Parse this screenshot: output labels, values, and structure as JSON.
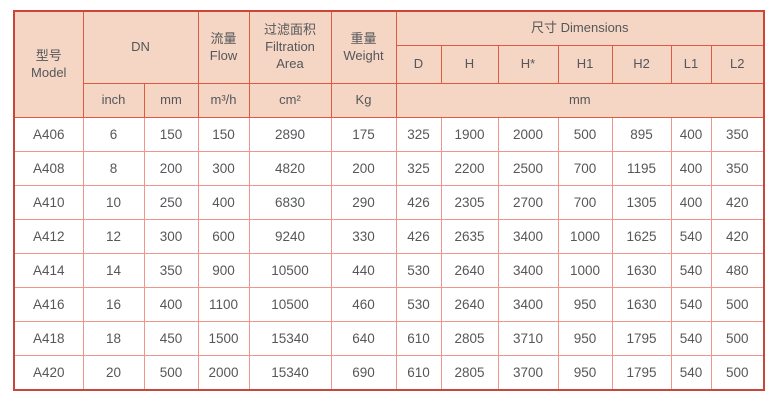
{
  "colors": {
    "header_bg": "#f5d5c4",
    "outer_border": "#c8473a",
    "header_border": "#e05a41",
    "body_border": "#f0958b",
    "text": "#55575a"
  },
  "table": {
    "header": {
      "model_zh": "型号",
      "model_en": "Model",
      "dn": "DN",
      "flow_zh": "流量",
      "flow_en": "Flow",
      "area_zh": "过滤面积",
      "area_en_line1": "Filtration",
      "area_en_line2": "Area",
      "weight_zh": "重量",
      "weight_en": "Weight",
      "dimensions": "尺寸 Dimensions",
      "dim_cols": [
        "D",
        "H",
        "H*",
        "H1",
        "H2",
        "L1",
        "L2"
      ],
      "unit_inch": "inch",
      "unit_mm": "mm",
      "unit_flow": "m³/h",
      "unit_area": "cm²",
      "unit_weight": "Kg",
      "unit_dims": "mm"
    },
    "col_keys": [
      "model",
      "dn-inch",
      "dn-mm",
      "flow",
      "filtration-area",
      "weight",
      "dim-d",
      "dim-h",
      "dim-h-star",
      "dim-h1",
      "dim-h2",
      "dim-l1",
      "dim-l2"
    ],
    "rows": [
      {
        "cells": [
          "A406",
          "6",
          "150",
          "150",
          "2890",
          "175",
          "325",
          "1900",
          "2000",
          "500",
          "895",
          "400",
          "350"
        ]
      },
      {
        "cells": [
          "A408",
          "8",
          "200",
          "300",
          "4820",
          "200",
          "325",
          "2200",
          "2500",
          "700",
          "1195",
          "400",
          "350"
        ]
      },
      {
        "cells": [
          "A410",
          "10",
          "250",
          "400",
          "6830",
          "290",
          "426",
          "2305",
          "2700",
          "700",
          "1305",
          "400",
          "420"
        ]
      },
      {
        "cells": [
          "A412",
          "12",
          "300",
          "600",
          "9240",
          "330",
          "426",
          "2635",
          "3400",
          "1000",
          "1625",
          "540",
          "420"
        ]
      },
      {
        "cells": [
          "A414",
          "14",
          "350",
          "900",
          "10500",
          "440",
          "530",
          "2640",
          "3400",
          "1000",
          "1630",
          "540",
          "480"
        ]
      },
      {
        "cells": [
          "A416",
          "16",
          "400",
          "1100",
          "10500",
          "460",
          "530",
          "2640",
          "3400",
          "950",
          "1630",
          "540",
          "500"
        ]
      },
      {
        "cells": [
          "A418",
          "18",
          "450",
          "1500",
          "15340",
          "640",
          "610",
          "2805",
          "3710",
          "950",
          "1795",
          "540",
          "500"
        ]
      },
      {
        "cells": [
          "A420",
          "20",
          "500",
          "2000",
          "15340",
          "690",
          "610",
          "2805",
          "3700",
          "950",
          "1795",
          "540",
          "500"
        ]
      }
    ]
  }
}
